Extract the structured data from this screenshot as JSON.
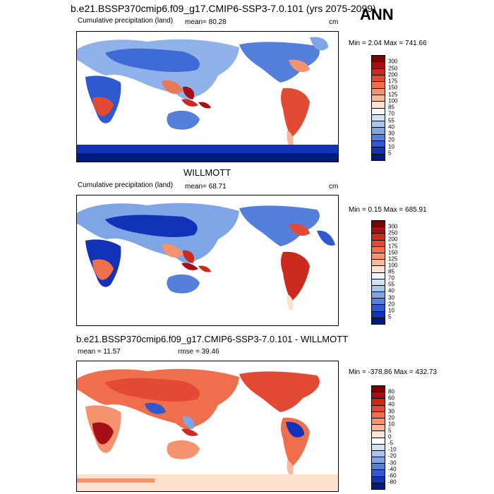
{
  "season": "ANN",
  "panels": [
    {
      "title": "b.e21.BSSP370cmip6.f09_g17.CMIP6-SSP3-7.0.101 (yrs 2075-2099)",
      "left_label": "Cumulative precipitation (land)",
      "stat": "mean=  80.28",
      "units": "cm",
      "minmax": "Min =  2.04 Max = 741.66",
      "colorbar": {
        "labels": [
          "300",
          "250",
          "200",
          "175",
          "150",
          "125",
          "100",
          "85",
          "70",
          "55",
          "40",
          "30",
          "20",
          "10",
          "5"
        ],
        "colors": [
          "#7f0000",
          "#a50f15",
          "#cb2a1e",
          "#e34a33",
          "#ef6f4c",
          "#f4936e",
          "#f9b898",
          "#fde3cf",
          "#f2f6fb",
          "#d2e2f6",
          "#a9c6ef",
          "#7ea5e6",
          "#5480dc",
          "#2f59cf",
          "#1232b8",
          "#001b7a"
        ]
      }
    },
    {
      "title": "WILLMOTT",
      "left_label": "Cumulative precipitation (land)",
      "stat": "mean=  68.71",
      "units": "cm",
      "minmax": "Min =  0.15 Max = 685.91",
      "colorbar": {
        "labels": [
          "300",
          "250",
          "200",
          "175",
          "150",
          "125",
          "100",
          "85",
          "70",
          "55",
          "40",
          "30",
          "20",
          "10",
          "5"
        ],
        "colors": [
          "#7f0000",
          "#a50f15",
          "#cb2a1e",
          "#e34a33",
          "#ef6f4c",
          "#f4936e",
          "#f9b898",
          "#fde3cf",
          "#f2f6fb",
          "#d2e2f6",
          "#a9c6ef",
          "#7ea5e6",
          "#5480dc",
          "#2f59cf",
          "#1232b8",
          "#001b7a"
        ]
      }
    },
    {
      "title": "b.e21.BSSP370cmip6.f09_g17.CMIP6-SSP3-7.0.101 - WILLMOTT",
      "left_label": "mean =  11.57",
      "stat": "rmse =  39.46",
      "units": "",
      "minmax": "Min = -378.86 Max = 432.73",
      "colorbar": {
        "labels": [
          "80",
          "60",
          "40",
          "30",
          "20",
          "10",
          "5",
          "0",
          "-5",
          "-10",
          "-20",
          "-30",
          "-40",
          "-60",
          "-80"
        ],
        "colors": [
          "#7f0000",
          "#a50f15",
          "#cb2a1e",
          "#e34a33",
          "#ef6f4c",
          "#f4936e",
          "#f9b898",
          "#fde3cf",
          "#ffffff",
          "#d2e2f6",
          "#a9c6ef",
          "#7ea5e6",
          "#5480dc",
          "#2f59cf",
          "#1232b8",
          "#001b7a"
        ]
      }
    }
  ]
}
